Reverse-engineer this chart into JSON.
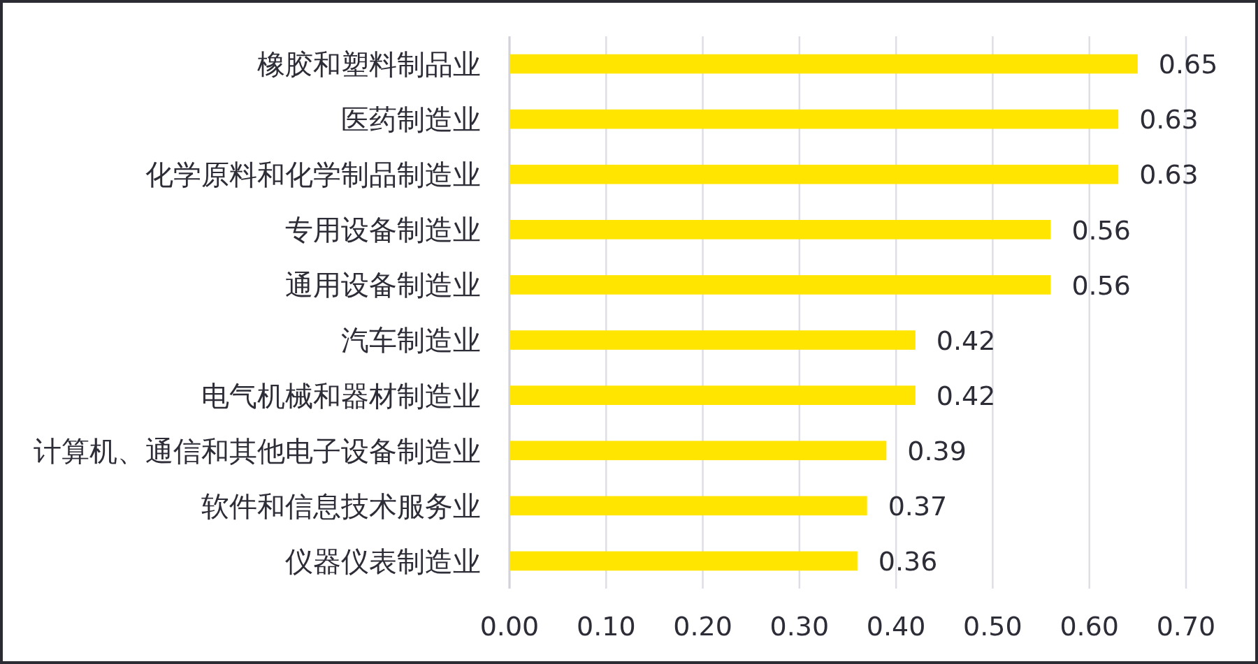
{
  "chart_data": {
    "type": "bar",
    "orientation": "horizontal",
    "categories": [
      "橡胶和塑料制品业",
      "医药制造业",
      "化学原料和化学制品制造业",
      "专用设备制造业",
      "通用设备制造业",
      "汽车制造业",
      "电气机械和器材制造业",
      "计算机、通信和其他电子设备制造业",
      "软件和信息技术服务业",
      "仪器仪表制造业"
    ],
    "values": [
      0.65,
      0.63,
      0.63,
      0.56,
      0.56,
      0.42,
      0.42,
      0.39,
      0.37,
      0.36
    ],
    "color": "#ffe500",
    "xlim": [
      0,
      0.7
    ],
    "xticks": [
      {
        "value": 0,
        "label": "0.00"
      },
      {
        "value": 0.1,
        "label": "0.10"
      },
      {
        "value": 0.2,
        "label": "0.20"
      },
      {
        "value": 0.3,
        "label": "0.30"
      },
      {
        "value": 0.4,
        "label": "0.40"
      },
      {
        "value": 0.5,
        "label": "0.50"
      },
      {
        "value": 0.6,
        "label": "0.60"
      },
      {
        "value": 0.7,
        "label": "0.70"
      }
    ],
    "grid": "x",
    "data_labels": true
  }
}
